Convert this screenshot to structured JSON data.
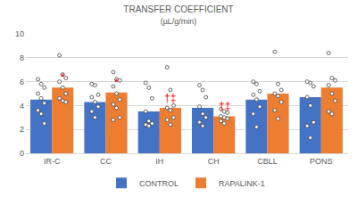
{
  "chart_data": {
    "type": "bar",
    "title": "TRANSFER COEFFICIENT",
    "subtitle": "(µL/g/min)",
    "categories": [
      "IR-C",
      "CC",
      "IH",
      "CH",
      "CBLL",
      "PONS"
    ],
    "series": [
      {
        "name": "CONTROL",
        "color": "#4472c4",
        "marker": "circle",
        "values": [
          4.5,
          4.3,
          3.5,
          3.8,
          4.5,
          4.7
        ],
        "points": [
          [
            6.2,
            5.8,
            5.5,
            5.0,
            4.6,
            4.2,
            3.6,
            3.3,
            2.5
          ],
          [
            5.8,
            5.7,
            4.9,
            4.7,
            4.3,
            3.9,
            3.5,
            3.0
          ],
          [
            5.9,
            5.5,
            4.6,
            3.5,
            2.7,
            2.5,
            2.4,
            2.3
          ],
          [
            5.7,
            5.3,
            4.7,
            3.9,
            3.3,
            3.0,
            2.6,
            2.3
          ],
          [
            6.0,
            5.8,
            5.2,
            4.9,
            4.5,
            3.9,
            3.3,
            2.2
          ],
          [
            6.0,
            5.9,
            5.6,
            4.7,
            4.0,
            2.6,
            2.3,
            1.3
          ]
        ]
      },
      {
        "name": "RAPALINK-1",
        "color": "#ed7d31",
        "marker": "circle",
        "values": [
          5.5,
          5.1,
          3.8,
          3.1,
          5.0,
          5.5
        ],
        "points": [
          [
            8.2,
            6.6,
            6.3,
            6.0,
            5.5,
            5.0,
            4.6,
            4.4,
            4.3
          ],
          [
            6.8,
            6.2,
            6.1,
            5.6,
            5.0,
            4.5,
            4.1,
            3.8,
            3.0,
            2.8
          ],
          [
            7.2,
            5.3,
            4.0,
            3.8,
            3.6,
            3.0,
            2.8,
            2.4
          ],
          [
            3.7,
            3.5,
            3.4,
            3.1,
            3.0,
            2.9,
            2.7,
            2.5
          ],
          [
            8.5,
            5.8,
            5.3,
            5.0,
            4.8,
            4.3,
            3.6,
            2.9
          ],
          [
            8.4,
            6.3,
            6.1,
            5.7,
            5.0,
            4.4,
            3.5,
            3.3
          ]
        ]
      }
    ],
    "annotations": [
      {
        "text": "*",
        "category": "IR-C",
        "series": "RAPALINK-1",
        "color": "#ff0000"
      },
      {
        "text": "*",
        "category": "CC",
        "series": "RAPALINK-1",
        "color": "#ff0000"
      },
      {
        "text": "†‡",
        "category": "IH",
        "series": "RAPALINK-1",
        "color": "#ff0000"
      },
      {
        "text": "†‡",
        "category": "CH",
        "series": "RAPALINK-1",
        "color": "#ff0000"
      }
    ],
    "ylim": [
      0,
      10
    ],
    "yticks": [
      0,
      2,
      4,
      6,
      8,
      10
    ],
    "grid": true,
    "legend": "bottom"
  }
}
